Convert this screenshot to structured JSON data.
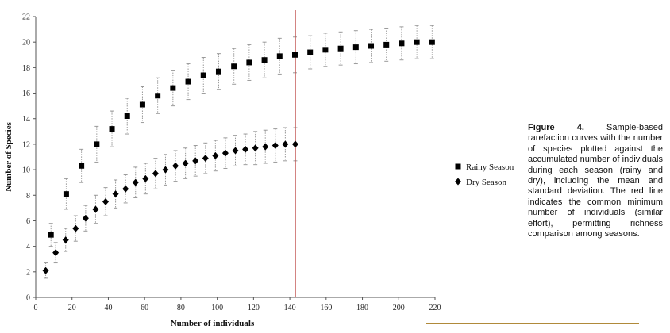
{
  "chart_data": {
    "type": "scatter",
    "xlabel": "Number of individuals",
    "ylabel": "Number of Species",
    "xlim": [
      0,
      220
    ],
    "ylim": [
      0,
      22
    ],
    "x_ticks": [
      0,
      20,
      40,
      60,
      80,
      100,
      120,
      140,
      160,
      180,
      200,
      220
    ],
    "y_ticks": [
      0,
      2,
      4,
      6,
      8,
      10,
      12,
      14,
      16,
      18,
      20,
      22
    ],
    "grid": false,
    "legend_position": "right",
    "reference_line": {
      "x": 143,
      "color": "#c0504d"
    },
    "series": [
      {
        "name": "Rainy Season",
        "marker": "square",
        "x": [
          8.4,
          16.8,
          25.2,
          33.6,
          42,
          50.4,
          58.8,
          67.2,
          75.6,
          84,
          92.4,
          100.8,
          109.2,
          117.6,
          126,
          134.4,
          142.8,
          151.2,
          159.6,
          168,
          176.4,
          184.8,
          193.2,
          201.6,
          210,
          218.4
        ],
        "y": [
          4.9,
          8.1,
          10.3,
          12.0,
          13.2,
          14.2,
          15.1,
          15.8,
          16.4,
          16.9,
          17.4,
          17.7,
          18.1,
          18.4,
          18.6,
          18.9,
          19.0,
          19.2,
          19.4,
          19.5,
          19.6,
          19.7,
          19.8,
          19.9,
          20.0,
          20.0
        ],
        "err": [
          0.9,
          1.2,
          1.3,
          1.4,
          1.4,
          1.4,
          1.4,
          1.4,
          1.4,
          1.4,
          1.4,
          1.4,
          1.4,
          1.4,
          1.4,
          1.4,
          1.4,
          1.3,
          1.3,
          1.3,
          1.3,
          1.3,
          1.3,
          1.3,
          1.3,
          1.3
        ]
      },
      {
        "name": "Dry Season",
        "marker": "diamond",
        "x": [
          5.5,
          11,
          16.5,
          22,
          27.5,
          33,
          38.5,
          44,
          49.5,
          55,
          60.5,
          66,
          71.5,
          77,
          82.5,
          88,
          93.5,
          99,
          104.5,
          110,
          115.5,
          121,
          126.5,
          132,
          137.5,
          143
        ],
        "y": [
          2.1,
          3.5,
          4.5,
          5.4,
          6.2,
          6.9,
          7.5,
          8.1,
          8.5,
          9.0,
          9.3,
          9.7,
          10.0,
          10.3,
          10.5,
          10.7,
          10.9,
          11.1,
          11.3,
          11.5,
          11.6,
          11.7,
          11.8,
          11.9,
          12.0,
          12.0
        ],
        "err": [
          0.6,
          0.8,
          0.9,
          1.0,
          1.0,
          1.1,
          1.1,
          1.1,
          1.1,
          1.2,
          1.2,
          1.2,
          1.2,
          1.2,
          1.2,
          1.2,
          1.2,
          1.2,
          1.2,
          1.2,
          1.2,
          1.3,
          1.3,
          1.3,
          1.3,
          1.3
        ]
      }
    ]
  },
  "caption": {
    "label": "Figure 4.",
    "text": " Sample-based rarefaction curves with the number of species plotted against the accumulated number of individuals during each season (rainy and dry), including the mean and standard deviation. The red line indicates the common minimum number of individuals (similar effort), permitting richness comparison among seasons."
  }
}
